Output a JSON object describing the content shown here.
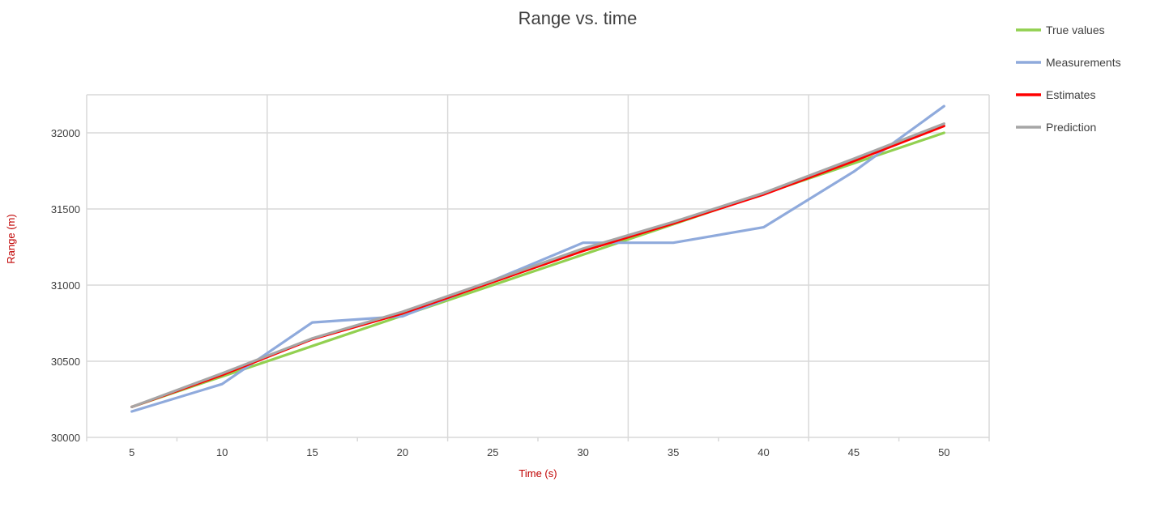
{
  "chart_data": {
    "type": "line",
    "title": "Range vs. time",
    "xlabel": "Time (s)",
    "ylabel": "Range (m)",
    "categories": [
      "5",
      "10",
      "15",
      "20",
      "25",
      "30",
      "35",
      "40",
      "45",
      "50"
    ],
    "ylim": [
      30000,
      32250
    ],
    "yticks": [
      30000,
      30500,
      31000,
      31500,
      32000
    ],
    "grid": true,
    "legend_position": "top-right",
    "series": [
      {
        "name": "True values",
        "color": "#92d050",
        "values": [
          30200,
          30400,
          30600,
          30800,
          31000,
          31200,
          31400,
          31600,
          31800,
          32000
        ]
      },
      {
        "name": "Measurements",
        "color": "#8faadc",
        "values": [
          30170,
          30350,
          30755,
          30795,
          31030,
          31278,
          31278,
          31380,
          31745,
          32175
        ]
      },
      {
        "name": "Estimates",
        "color": "#ff0000",
        "values": [
          30200,
          30410,
          30645,
          30815,
          31020,
          31225,
          31405,
          31595,
          31815,
          32045
        ]
      },
      {
        "name": "Prediction",
        "color": "#a6a6a6",
        "values": [
          30200,
          30420,
          30650,
          30825,
          31030,
          31240,
          31415,
          31605,
          31830,
          32060
        ]
      }
    ]
  }
}
